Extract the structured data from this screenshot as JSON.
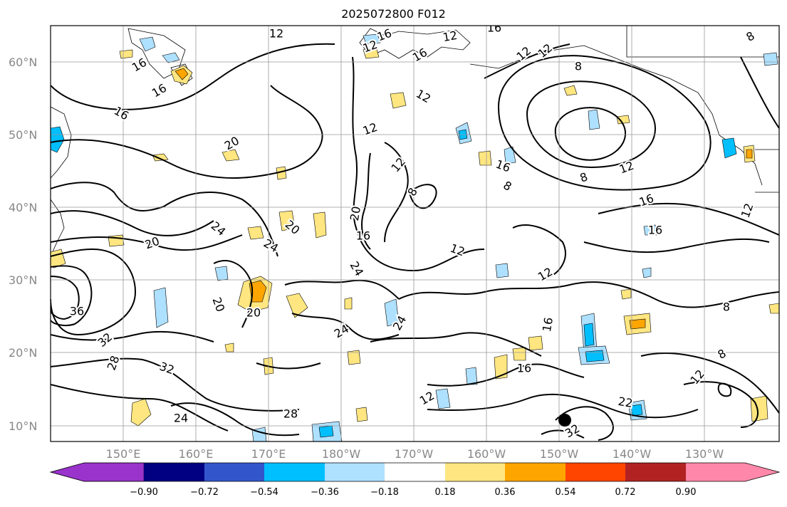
{
  "title": "2025072800 F012",
  "map": {
    "lat_ticks": [
      "60°N",
      "50°N",
      "40°N",
      "30°N",
      "20°N",
      "10°N"
    ],
    "lon_ticks": [
      "150°E",
      "160°E",
      "170°E",
      "180°W",
      "170°W",
      "160°W",
      "150°W",
      "140°W",
      "130°W"
    ],
    "grid": true,
    "contour_labels": [
      "12",
      "16",
      "12",
      "16",
      "12",
      "16",
      "12",
      "12",
      "16",
      "8",
      "16",
      "16",
      "12",
      "12",
      "8",
      "12",
      "20",
      "12",
      "8",
      "8",
      "16",
      "8",
      "16",
      "20",
      "24",
      "24",
      "20",
      "20",
      "16",
      "12",
      "12",
      "24",
      "12",
      "16",
      "36",
      "20",
      "32",
      "20",
      "24",
      "24",
      "16",
      "16",
      "8",
      "32",
      "28",
      "8",
      "12",
      "24",
      "28",
      "32",
      "12",
      "22"
    ],
    "marker": "black-dot"
  },
  "colorbar": {
    "ticks": [
      "−0.90",
      "−0.72",
      "−0.54",
      "−0.36",
      "−0.18",
      "0.18",
      "0.36",
      "0.54",
      "0.72",
      "0.90"
    ],
    "colors": [
      "#9933cc",
      "#000080",
      "#3355cc",
      "#00bfff",
      "#aee0ff",
      "#ffffff",
      "#ffe680",
      "#ffa500",
      "#ff4500",
      "#b22222",
      "#ff88aa"
    ]
  }
}
